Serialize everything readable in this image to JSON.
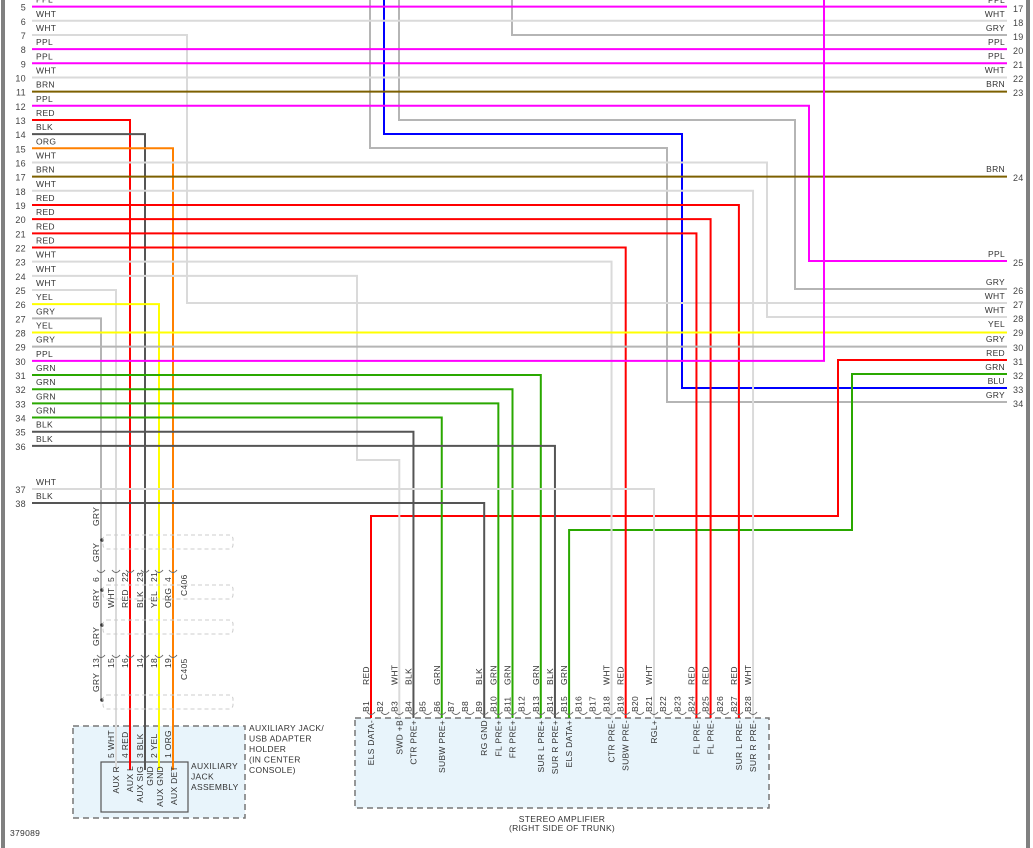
{
  "diagram_id": "379089",
  "palette": {
    "PPL": "#ff00ff",
    "WHT": "#dadada",
    "GRY": "#b5b5b5",
    "BRN": "#7d6000",
    "RED": "#ff0000",
    "BLK": "#555555",
    "ORG": "#ff8000",
    "YEL": "#ffff00",
    "GRN": "#2aa800",
    "BLU": "#0000ff"
  },
  "left_wires": [
    {
      "num": "5",
      "color": "PPL"
    },
    {
      "num": "6",
      "color": "WHT"
    },
    {
      "num": "7",
      "color": "WHT"
    },
    {
      "num": "8",
      "color": "PPL"
    },
    {
      "num": "9",
      "color": "PPL"
    },
    {
      "num": "10",
      "color": "WHT"
    },
    {
      "num": "11",
      "color": "BRN"
    },
    {
      "num": "12",
      "color": "PPL"
    },
    {
      "num": "13",
      "color": "RED"
    },
    {
      "num": "14",
      "color": "BLK"
    },
    {
      "num": "15",
      "color": "ORG"
    },
    {
      "num": "16",
      "color": "WHT"
    },
    {
      "num": "17",
      "color": "BRN"
    },
    {
      "num": "18",
      "color": "WHT"
    },
    {
      "num": "19",
      "color": "RED"
    },
    {
      "num": "20",
      "color": "RED"
    },
    {
      "num": "21",
      "color": "RED"
    },
    {
      "num": "22",
      "color": "RED"
    },
    {
      "num": "23",
      "color": "WHT"
    },
    {
      "num": "24",
      "color": "WHT"
    },
    {
      "num": "25",
      "color": "WHT"
    },
    {
      "num": "26",
      "color": "YEL"
    },
    {
      "num": "27",
      "color": "GRY"
    },
    {
      "num": "28",
      "color": "YEL"
    },
    {
      "num": "29",
      "color": "GRY"
    },
    {
      "num": "30",
      "color": "PPL"
    },
    {
      "num": "31",
      "color": "GRN"
    },
    {
      "num": "32",
      "color": "GRN"
    },
    {
      "num": "33",
      "color": "GRN"
    },
    {
      "num": "34",
      "color": "GRN"
    },
    {
      "num": "35",
      "color": "BLK"
    },
    {
      "num": "36",
      "color": "BLK"
    },
    {
      "num": "37",
      "color": "WHT"
    },
    {
      "num": "38",
      "color": "BLK"
    }
  ],
  "right_wires": [
    {
      "num": "17",
      "color": "PPL"
    },
    {
      "num": "18",
      "color": "WHT"
    },
    {
      "num": "19",
      "color": "GRY"
    },
    {
      "num": "20",
      "color": "PPL"
    },
    {
      "num": "21",
      "color": "PPL"
    },
    {
      "num": "22",
      "color": "WHT"
    },
    {
      "num": "23",
      "color": "BRN"
    },
    {
      "num": "24",
      "color": "BRN"
    },
    {
      "num": "25",
      "color": "PPL"
    },
    {
      "num": "26",
      "color": "GRY"
    },
    {
      "num": "27",
      "color": "WHT"
    },
    {
      "num": "28",
      "color": "WHT"
    },
    {
      "num": "29",
      "color": "YEL"
    },
    {
      "num": "30",
      "color": "GRY"
    },
    {
      "num": "31",
      "color": "RED"
    },
    {
      "num": "32",
      "color": "GRN"
    },
    {
      "num": "33",
      "color": "BLU"
    },
    {
      "num": "34",
      "color": "GRY"
    }
  ],
  "aux_connectors": {
    "c406": {
      "name": "C406",
      "colors": [
        "GRY",
        "WHT",
        "RED",
        "BLK",
        "YEL",
        "ORG"
      ],
      "pins": [
        "6",
        "5",
        "22",
        "23",
        "21",
        "4"
      ]
    },
    "c405": {
      "name": "C405",
      "pins": [
        "13",
        "15",
        "16",
        "14",
        "18",
        "19"
      ]
    },
    "shield_labels": [
      "GRY",
      "GRY",
      "GRY",
      "GRY",
      "GRY"
    ]
  },
  "aux_holder": {
    "label_lines": [
      "AUXILIARY JACK/",
      "USB ADAPTER",
      "HOLDER",
      "(IN CENTER",
      "CONSOLE)"
    ],
    "jack_label_lines": [
      "AUXILIARY",
      "JACK",
      "ASSEMBLY"
    ],
    "pins": [
      {
        "label": "5 WHT",
        "color": "WHT"
      },
      {
        "label": "4 RED",
        "color": "RED"
      },
      {
        "label": "3 BLK",
        "color": "BLK"
      },
      {
        "label": "2 YEL",
        "color": "YEL"
      },
      {
        "label": "1 ORG",
        "color": "ORG"
      }
    ],
    "functions": [
      "AUX R",
      "AUX L",
      "AUX SIG",
      "GND",
      "AUX GND",
      "AUX DET"
    ]
  },
  "amplifier": {
    "title": "STEREO AMPLIFIER",
    "subtitle": "(RIGHT SIDE OF TRUNK)",
    "pins": [
      {
        "pin": "B1",
        "wire": "RED",
        "function": "ELS DATA-"
      },
      {
        "pin": "B2",
        "wire": "",
        "function": ""
      },
      {
        "pin": "B3",
        "wire": "WHT",
        "function": "SWD +B"
      },
      {
        "pin": "B4",
        "wire": "BLK",
        "function": "CTR PRE+"
      },
      {
        "pin": "B5",
        "wire": "",
        "function": ""
      },
      {
        "pin": "B6",
        "wire": "GRN",
        "function": "SUBW PRE+"
      },
      {
        "pin": "B7",
        "wire": "",
        "function": ""
      },
      {
        "pin": "B8",
        "wire": "",
        "function": ""
      },
      {
        "pin": "B9",
        "wire": "BLK",
        "function": "RG GND"
      },
      {
        "pin": "B10",
        "wire": "GRN",
        "function": "FL PRE+"
      },
      {
        "pin": "B11",
        "wire": "GRN",
        "function": "FR PRE+"
      },
      {
        "pin": "B12",
        "wire": "",
        "function": ""
      },
      {
        "pin": "B13",
        "wire": "GRN",
        "function": "SUR L PRE+"
      },
      {
        "pin": "B14",
        "wire": "BLK",
        "function": "SUR R PRE+"
      },
      {
        "pin": "B15",
        "wire": "GRN",
        "function": "ELS DATA+"
      },
      {
        "pin": "B16",
        "wire": "",
        "function": ""
      },
      {
        "pin": "B17",
        "wire": "",
        "function": ""
      },
      {
        "pin": "B18",
        "wire": "WHT",
        "function": "CTR PRE-"
      },
      {
        "pin": "B19",
        "wire": "RED",
        "function": "SUBW PRE-"
      },
      {
        "pin": "B20",
        "wire": "",
        "function": ""
      },
      {
        "pin": "B21",
        "wire": "WHT",
        "function": "RGL+"
      },
      {
        "pin": "B22",
        "wire": "",
        "function": ""
      },
      {
        "pin": "B23",
        "wire": "",
        "function": ""
      },
      {
        "pin": "B24",
        "wire": "RED",
        "function": "FL PRE-"
      },
      {
        "pin": "B25",
        "wire": "RED",
        "function": "FL PRE-"
      },
      {
        "pin": "B26",
        "wire": "",
        "function": ""
      },
      {
        "pin": "B27",
        "wire": "RED",
        "function": "SUR L PRE-"
      },
      {
        "pin": "B28",
        "wire": "WHT",
        "function": "SUR R PRE-"
      }
    ]
  }
}
